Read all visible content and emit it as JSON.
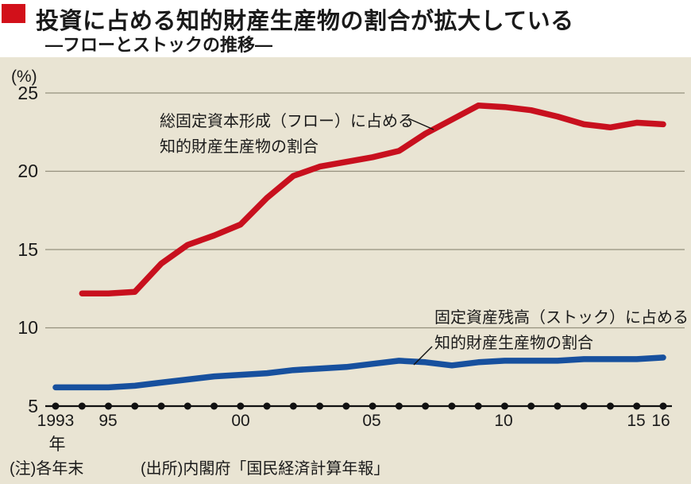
{
  "header": {
    "title": "投資に占める知的財産生産物の割合が拡大している",
    "subtitle": "―フローとストックの推移―"
  },
  "chart": {
    "unit_label": "(%)",
    "y_ticks": [
      {
        "label": "25",
        "value": 25
      },
      {
        "label": "20",
        "value": 20
      },
      {
        "label": "15",
        "value": 15
      },
      {
        "label": "10",
        "value": 10
      },
      {
        "label": "5",
        "value": 5
      }
    ],
    "x_ticks": [
      {
        "label": "1993",
        "year": 1993
      },
      {
        "label": "95",
        "year": 1995
      },
      {
        "label": "00",
        "year": 2000
      },
      {
        "label": "05",
        "year": 2005
      },
      {
        "label": "10",
        "year": 2010
      },
      {
        "label": "15",
        "year": 2015
      },
      {
        "label": "16",
        "year": 2016
      }
    ],
    "x_axis_suffix": "年",
    "annotations": {
      "flow": "総固定資本形成（フロー）に占める\n知的財産生産物の割合",
      "stock": "固定資産残高（ストック）に占める\n知的財産生産物の割合"
    }
  },
  "footer": {
    "note": "(注)各年末",
    "source": "(出所)内閣府「国民経済計算年報」"
  },
  "colors": {
    "flow_red": "#c8101e",
    "stock_blue": "#17509e",
    "panel_beige": "#e9e4d3",
    "grid_gray": "#95907d",
    "axis_black": "#111111",
    "title_marker_red": "#d2101a"
  },
  "chart_data": {
    "type": "line",
    "title": "投資に占める知的財産生産物の割合が拡大している ―フローとストックの推移―",
    "xlabel": "年",
    "ylabel": "%",
    "ylim": [
      5,
      25
    ],
    "grid": "horizontal",
    "legend_position": "inline-annotations",
    "x": [
      1993,
      1994,
      1995,
      1996,
      1997,
      1998,
      1999,
      2000,
      2001,
      2002,
      2003,
      2004,
      2005,
      2006,
      2007,
      2008,
      2009,
      2010,
      2011,
      2012,
      2013,
      2014,
      2015,
      2016
    ],
    "series": [
      {
        "id": "flow",
        "name": "総固定資本形成（フロー）に占める知的財産生産物の割合",
        "color": "#c8101e",
        "values": [
          null,
          12.2,
          12.2,
          12.3,
          14.1,
          15.3,
          15.9,
          16.6,
          18.3,
          19.7,
          20.3,
          20.6,
          20.9,
          21.3,
          22.4,
          23.3,
          24.2,
          24.1,
          23.9,
          23.5,
          23.0,
          22.8,
          23.1,
          23.0
        ]
      },
      {
        "id": "stock",
        "name": "固定資産残高（ストック）に占める知的財産生産物の割合",
        "color": "#17509e",
        "values": [
          6.2,
          6.2,
          6.2,
          6.3,
          6.5,
          6.7,
          6.9,
          7.0,
          7.1,
          7.3,
          7.4,
          7.5,
          7.7,
          7.9,
          7.8,
          7.6,
          7.8,
          7.9,
          7.9,
          7.9,
          8.0,
          8.0,
          8.0,
          8.1
        ]
      }
    ],
    "note": "各年末",
    "source": "内閣府「国民経済計算年報」"
  }
}
